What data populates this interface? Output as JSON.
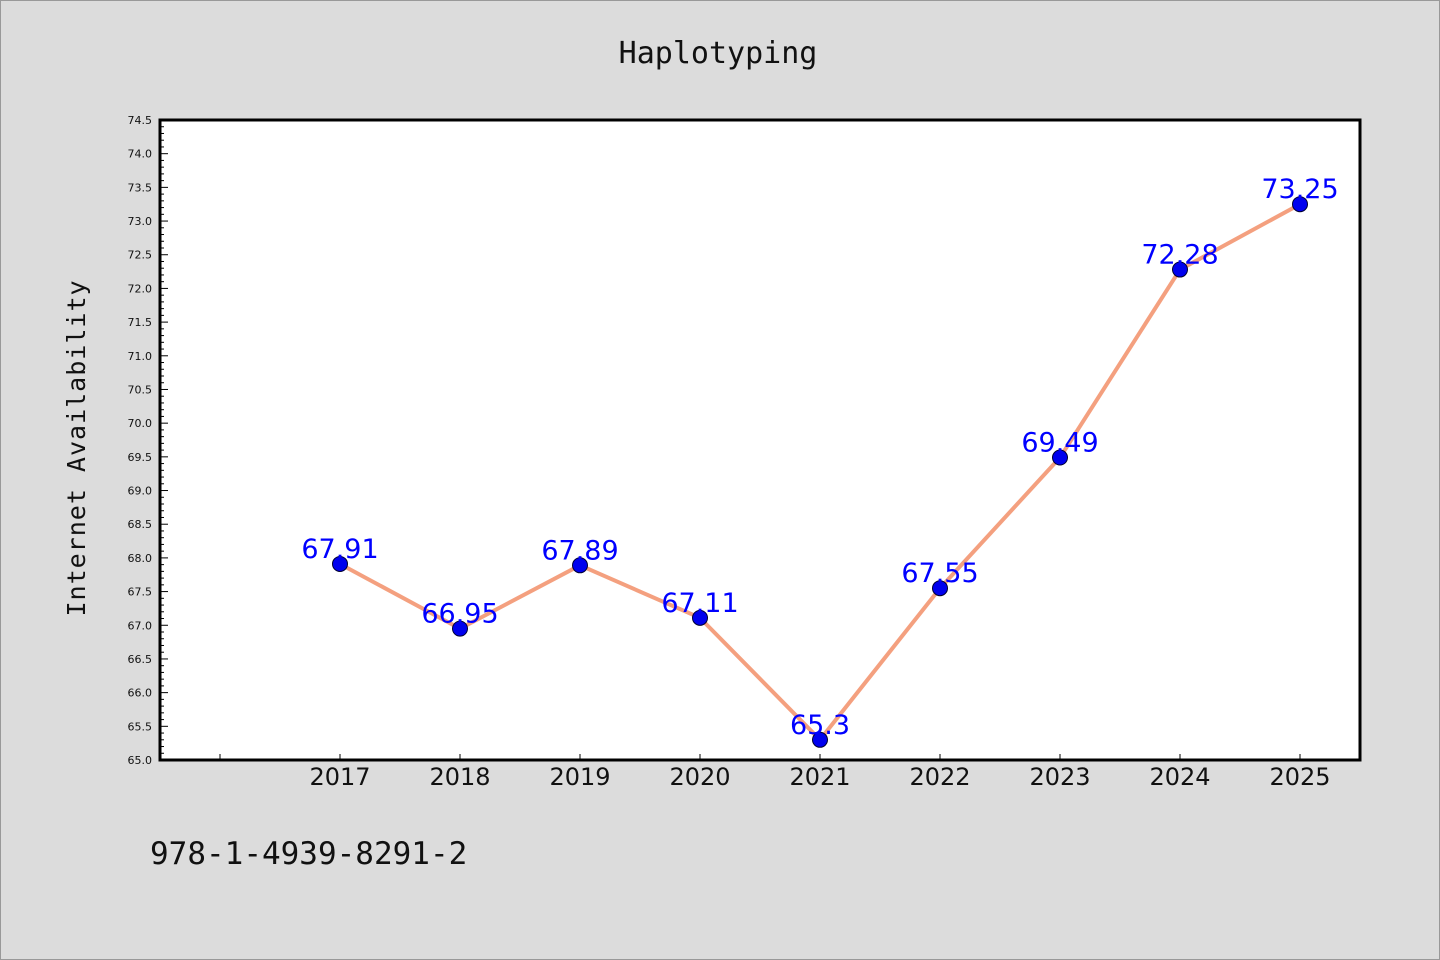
{
  "chart_data": {
    "type": "line",
    "title": "Haplotyping",
    "xlabel": "",
    "ylabel": "Internet Availability",
    "categories": [
      "2017",
      "2018",
      "2019",
      "2020",
      "2021",
      "2022",
      "2023",
      "2024",
      "2025"
    ],
    "values": [
      67.91,
      66.95,
      67.89,
      67.11,
      65.3,
      67.55,
      69.49,
      72.28,
      73.25
    ],
    "data_labels": [
      "67.91",
      "66.95",
      "67.89",
      "67.11",
      "65.3",
      "67.55",
      "69.49",
      "72.28",
      "73.25"
    ],
    "ylim": [
      65.0,
      74.5
    ],
    "ytick_labels": [
      "65.0",
      "65.5",
      "66.0",
      "66.5",
      "67.0",
      "67.5",
      "68.0",
      "68.5",
      "69.0",
      "69.5",
      "70.0",
      "70.5",
      "71.0",
      "71.5",
      "72.0",
      "72.5",
      "73.0",
      "73.5",
      "74.0",
      "74.5"
    ],
    "grid": false,
    "legend": "none",
    "line_color": "#f4a07f",
    "marker_color": "#0000ee",
    "label_color": "#0000ff"
  },
  "footer_text": "978-1-4939-8291-2"
}
